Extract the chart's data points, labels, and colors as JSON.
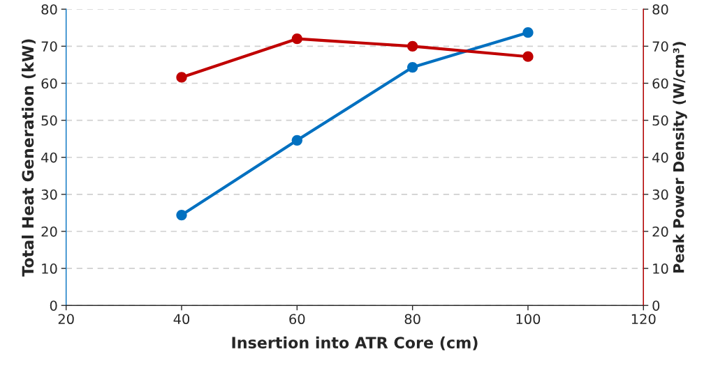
{
  "chart_data": {
    "type": "line",
    "xlabel": "Insertion into ATR Core (cm)",
    "ylabel": "Total Heat Generation (kW)",
    "y2label": "Peak Power Density (W/cm³)",
    "x": [
      40,
      60,
      80,
      100
    ],
    "series": [
      {
        "color": "#0070c0",
        "values": [
          24.4,
          44.6,
          64.3,
          73.7
        ]
      },
      {
        "color": "#c00000",
        "values": [
          61.6,
          72.0,
          70.0,
          67.2
        ],
        "axis": "y2"
      }
    ],
    "xlim": [
      20,
      120
    ],
    "xticks": [
      20,
      40,
      60,
      80,
      100,
      120
    ],
    "ylim": [
      0,
      80
    ],
    "yticks": [
      0,
      10,
      20,
      30,
      40,
      50,
      60,
      70,
      80
    ],
    "y2lim": [
      0,
      80
    ],
    "y2ticks": [
      0,
      10,
      20,
      30,
      40,
      50,
      60,
      70,
      80
    ],
    "grid": "y",
    "marker": "circle",
    "line_style": "solid"
  }
}
